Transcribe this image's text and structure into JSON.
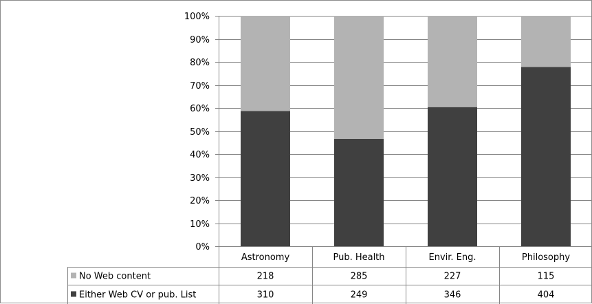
{
  "chart_data": {
    "type": "bar",
    "stacked": "percent",
    "title": "",
    "xlabel": "",
    "ylabel": "",
    "ylim": [
      0,
      100
    ],
    "y_tick_format": "{v}%",
    "y_ticks": [
      0,
      10,
      20,
      30,
      40,
      50,
      60,
      70,
      80,
      90,
      100
    ],
    "grid": true,
    "legend": "data-table-left",
    "categories": [
      "Astronomy",
      "Pub. Health",
      "Envir. Eng.",
      "Philosophy"
    ],
    "series": [
      {
        "name": "Either Web CV or pub. List",
        "values": [
          310,
          249,
          346,
          404
        ],
        "color": "#404040"
      },
      {
        "name": "No Web content",
        "values": [
          218,
          285,
          227,
          115
        ],
        "color": "#b3b3b3"
      }
    ],
    "table_row_order": [
      "No Web content",
      "Either Web CV or pub. List"
    ]
  }
}
